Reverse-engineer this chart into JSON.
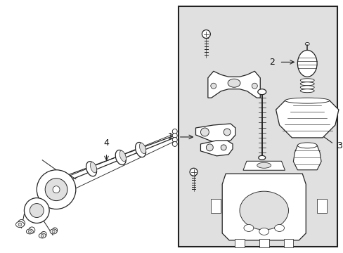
{
  "bg_color": "#ffffff",
  "box_bg": "#e0e0e0",
  "box_border": "#222222",
  "line_color": "#222222",
  "label_color": "#111111",
  "fig_width": 4.89,
  "fig_height": 3.6,
  "dpi": 100
}
